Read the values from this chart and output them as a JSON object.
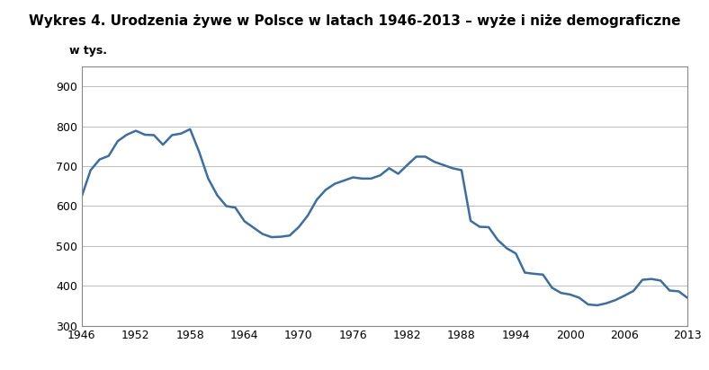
{
  "title": "Wykres 4. Urodzenia żywe w Polsce w latach 1946-2013 – wyże i niże demograficzne",
  "ylabel": "w tys.",
  "line_color": "#3A6EA5",
  "background_color": "#ffffff",
  "plot_bg_color": "#ffffff",
  "grid_color": "#bbbbbb",
  "ylim": [
    300,
    950
  ],
  "yticks": [
    300,
    400,
    500,
    600,
    700,
    800,
    900
  ],
  "xticks": [
    1946,
    1952,
    1958,
    1964,
    1970,
    1976,
    1982,
    1988,
    1994,
    2000,
    2006,
    2013
  ],
  "years": [
    1946,
    1947,
    1948,
    1949,
    1950,
    1951,
    1952,
    1953,
    1954,
    1955,
    1956,
    1957,
    1958,
    1959,
    1960,
    1961,
    1962,
    1963,
    1964,
    1965,
    1966,
    1967,
    1968,
    1969,
    1970,
    1971,
    1972,
    1973,
    1974,
    1975,
    1976,
    1977,
    1978,
    1979,
    1980,
    1981,
    1982,
    1983,
    1984,
    1985,
    1986,
    1987,
    1988,
    1989,
    1990,
    1991,
    1992,
    1993,
    1994,
    1995,
    1996,
    1997,
    1998,
    1999,
    2000,
    2001,
    2002,
    2003,
    2004,
    2005,
    2006,
    2007,
    2008,
    2009,
    2010,
    2011,
    2012,
    2013
  ],
  "values": [
    623,
    690,
    717,
    726,
    763,
    779,
    789,
    779,
    778,
    754,
    778,
    782,
    793,
    736,
    669,
    627,
    600,
    596,
    562,
    546,
    530,
    522,
    523,
    526,
    547,
    576,
    616,
    641,
    656,
    664,
    672,
    669,
    669,
    677,
    695,
    681,
    703,
    724,
    724,
    711,
    703,
    695,
    690,
    563,
    548,
    547,
    515,
    494,
    481,
    433,
    430,
    428,
    395,
    382,
    378,
    370,
    353,
    351,
    356,
    364,
    375,
    387,
    415,
    417,
    413,
    388,
    386,
    369
  ]
}
